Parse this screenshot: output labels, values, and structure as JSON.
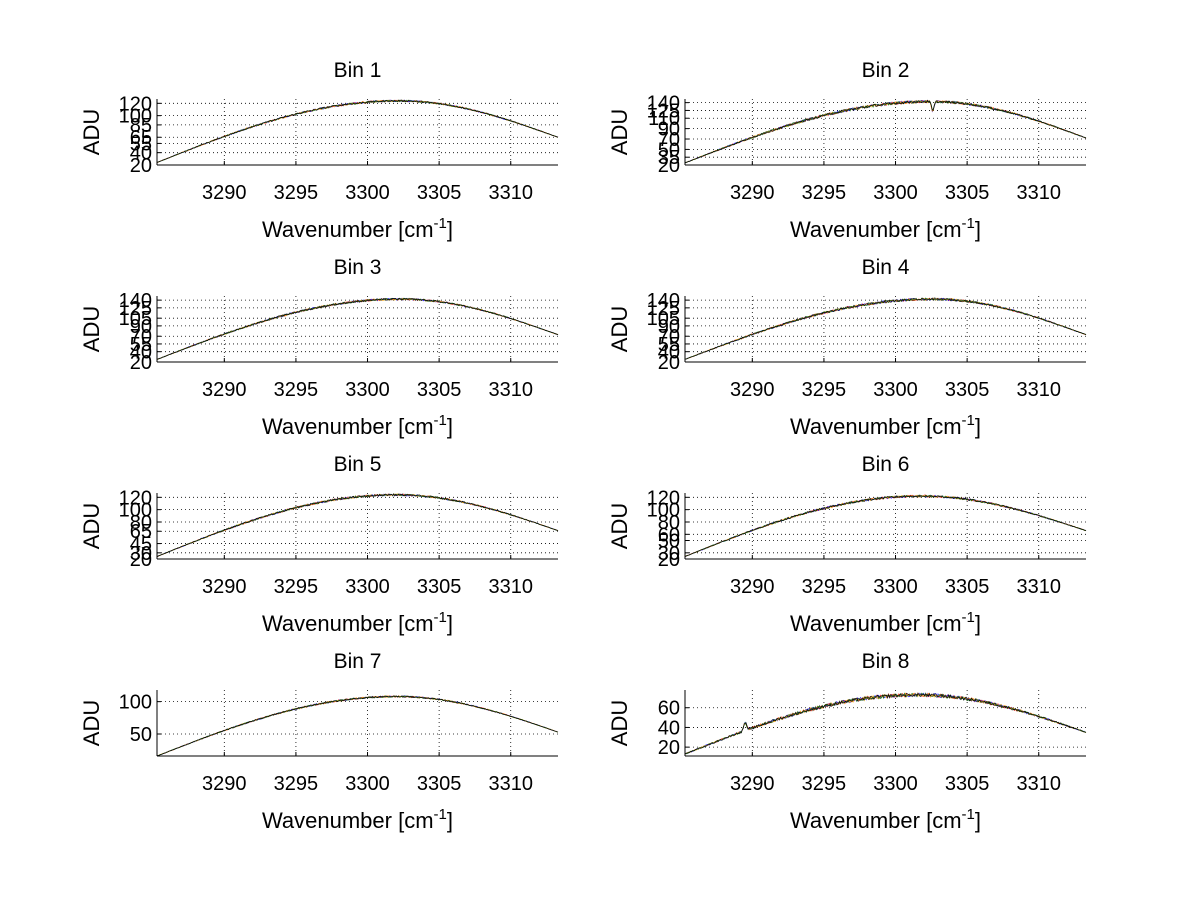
{
  "figure": {
    "background": "#ffffff",
    "line_colors": [
      "#ff0000",
      "#0000ff",
      "#ffa500",
      "#006400",
      "#000000"
    ]
  },
  "chart_data": [
    {
      "type": "line",
      "title": "Bin 1",
      "xlabel": "Wavenumber [cm",
      "xlabel_sup": "-1",
      "xlabel_end": "]",
      "ylabel": "ADU",
      "xlim": [
        3285.3,
        3313.3
      ],
      "ylim": [
        20,
        127
      ],
      "xticks": [
        3290,
        3295,
        3300,
        3305,
        3310
      ],
      "yticks": [
        20,
        40,
        55,
        65,
        85,
        100,
        120
      ],
      "ytick_labels": [
        "20",
        "40",
        "55",
        "65",
        "85",
        "100",
        "120"
      ],
      "grid": true,
      "curve": {
        "start": 24,
        "peak": 124,
        "peak_x": 3302.2,
        "end": 65,
        "noise": 1.2
      }
    },
    {
      "type": "line",
      "title": "Bin 2",
      "xlabel": "Wavenumber [cm",
      "xlabel_sup": "-1",
      "xlabel_end": "]",
      "ylabel": "ADU",
      "xlim": [
        3285.3,
        3313.3
      ],
      "ylim": [
        20,
        147
      ],
      "xticks": [
        3290,
        3295,
        3300,
        3305,
        3310
      ],
      "yticks": [
        20,
        35,
        50,
        70,
        90,
        110,
        125,
        140
      ],
      "ytick_labels": [
        "20",
        "35",
        "50",
        "70",
        "90",
        "110",
        "125",
        "140"
      ],
      "grid": true,
      "curve": {
        "start": 24,
        "peak": 142,
        "peak_x": 3302.5,
        "end": 72,
        "noise": 2.0,
        "dip_x": 3302.6,
        "dip_depth": 18
      }
    },
    {
      "type": "line",
      "title": "Bin 3",
      "xlabel": "Wavenumber [cm",
      "xlabel_sup": "-1",
      "xlabel_end": "]",
      "ylabel": "ADU",
      "xlim": [
        3285.3,
        3313.3
      ],
      "ylim": [
        20,
        148
      ],
      "xticks": [
        3290,
        3295,
        3300,
        3305,
        3310
      ],
      "yticks": [
        20,
        40,
        55,
        70,
        90,
        105,
        125,
        140
      ],
      "ytick_labels": [
        "20",
        "40",
        "55",
        "70",
        "90",
        "105",
        "125",
        "140"
      ],
      "grid": true,
      "curve": {
        "start": 25,
        "peak": 142,
        "peak_x": 3302.3,
        "end": 73,
        "noise": 1.5
      }
    },
    {
      "type": "line",
      "title": "Bin 4",
      "xlabel": "Wavenumber [cm",
      "xlabel_sup": "-1",
      "xlabel_end": "]",
      "ylabel": "ADU",
      "xlim": [
        3285.3,
        3313.3
      ],
      "ylim": [
        20,
        148
      ],
      "xticks": [
        3290,
        3295,
        3300,
        3305,
        3310
      ],
      "yticks": [
        20,
        40,
        55,
        70,
        90,
        105,
        125,
        140
      ],
      "ytick_labels": [
        "20",
        "40",
        "55",
        "70",
        "90",
        "105",
        "125",
        "140"
      ],
      "grid": true,
      "curve": {
        "start": 25,
        "peak": 142,
        "peak_x": 3302.6,
        "end": 73,
        "noise": 1.8
      }
    },
    {
      "type": "line",
      "title": "Bin 5",
      "xlabel": "Wavenumber [cm",
      "xlabel_sup": "-1",
      "xlabel_end": "]",
      "ylabel": "ADU",
      "xlim": [
        3285.3,
        3313.3
      ],
      "ylim": [
        20,
        127
      ],
      "xticks": [
        3290,
        3295,
        3300,
        3305,
        3310
      ],
      "yticks": [
        20,
        30,
        45,
        65,
        80,
        100,
        120
      ],
      "ytick_labels": [
        "20",
        "30",
        "45",
        "65",
        "80",
        "100",
        "120"
      ],
      "grid": true,
      "curve": {
        "start": 24,
        "peak": 124,
        "peak_x": 3302.0,
        "end": 66,
        "noise": 1.3
      }
    },
    {
      "type": "line",
      "title": "Bin 6",
      "xlabel": "Wavenumber [cm",
      "xlabel_sup": "-1",
      "xlabel_end": "]",
      "ylabel": "ADU",
      "xlim": [
        3285.3,
        3313.3
      ],
      "ylim": [
        20,
        127
      ],
      "xticks": [
        3290,
        3295,
        3300,
        3305,
        3310
      ],
      "yticks": [
        20,
        30,
        50,
        60,
        80,
        100,
        120
      ],
      "ytick_labels": [
        "20",
        "30",
        "50",
        "60",
        "80",
        "100",
        "120"
      ],
      "grid": true,
      "curve": {
        "start": 24,
        "peak": 122,
        "peak_x": 3301.8,
        "end": 66,
        "noise": 1.4
      }
    },
    {
      "type": "line",
      "title": "Bin 7",
      "xlabel": "Wavenumber [cm",
      "xlabel_sup": "-1",
      "xlabel_end": "]",
      "ylabel": "ADU",
      "xlim": [
        3285.3,
        3313.3
      ],
      "ylim": [
        16,
        118
      ],
      "xticks": [
        3290,
        3295,
        3300,
        3305,
        3310
      ],
      "yticks": [
        50,
        100
      ],
      "ytick_labels": [
        "50",
        "100"
      ],
      "grid": true,
      "curve": {
        "start": 16,
        "peak": 108,
        "peak_x": 3302.0,
        "end": 53,
        "noise": 1.0
      }
    },
    {
      "type": "line",
      "title": "Bin 8",
      "xlabel": "Wavenumber [cm",
      "xlabel_sup": "-1",
      "xlabel_end": "]",
      "ylabel": "ADU",
      "xlim": [
        3285.3,
        3313.3
      ],
      "ylim": [
        11,
        78
      ],
      "xticks": [
        3290,
        3295,
        3300,
        3305,
        3310
      ],
      "yticks": [
        20,
        40,
        60
      ],
      "ytick_labels": [
        "20",
        "40",
        "60"
      ],
      "grid": true,
      "curve": {
        "start": 13,
        "peak": 73,
        "peak_x": 3301.5,
        "end": 35,
        "noise": 1.5,
        "spike_x": 3289.5,
        "spike_height": 8
      }
    }
  ]
}
